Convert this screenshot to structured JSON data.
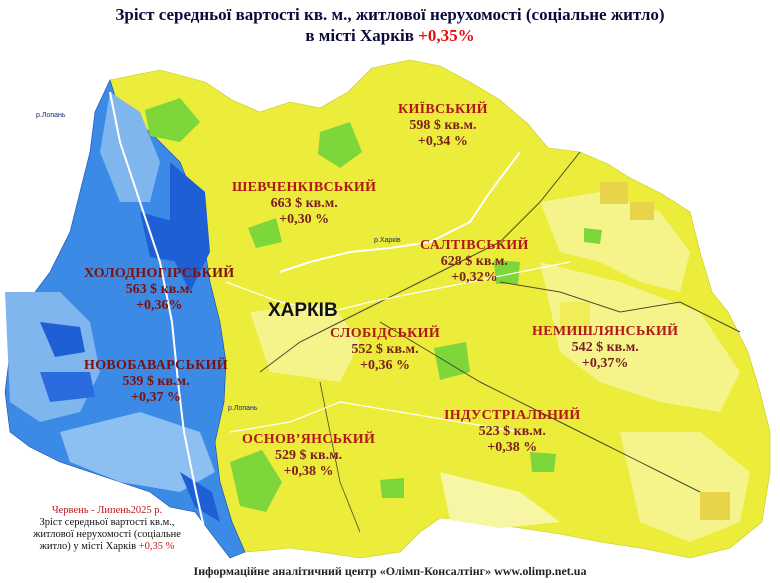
{
  "title": {
    "line1": "Зріст середньої вартості кв. м., житлової нерухомості (соціальне житло)",
    "line2_prefix": "в місті Харків",
    "line2_value": "+0,35%"
  },
  "city_label": "ХАРКІВ",
  "rivers": {
    "lopan_top": "р.Лопань",
    "lopan_bottom": "р.Лопань",
    "kharkiv": "р.Харків"
  },
  "districts": [
    {
      "id": "kyivskyi",
      "name": "КИЇВСЬКИЙ",
      "price": "598 $ кв.м.",
      "change": "+0,34 %"
    },
    {
      "id": "shevchenkivskyi",
      "name": "ШЕВЧЕНКІВСЬКИЙ",
      "price": "663 $ кв.м.",
      "change": "+0,30 %"
    },
    {
      "id": "saltivskyi",
      "name": "САЛТІВСЬКИЙ",
      "price": "628 $ кв.м.",
      "change": "+0,32%"
    },
    {
      "id": "kholodnohirskyi",
      "name": "ХОЛОДНОГІРСЬКИЙ",
      "price": "563 $ кв.м.",
      "change": "+0,36%"
    },
    {
      "id": "slobidskyi",
      "name": "СЛОБІДСЬКИЙ",
      "price": "552 $ кв.м.",
      "change": "+0,36 %"
    },
    {
      "id": "nemyshlianskyi",
      "name": "НЕМИШЛЯНСЬКИЙ",
      "price": "542 $ кв.м.",
      "change": "+0,37%"
    },
    {
      "id": "novobavarskyi",
      "name": "НОВОБАВАРСЬКИЙ",
      "price": "539 $ кв.м.",
      "change": "+0,37 %"
    },
    {
      "id": "industrialnyi",
      "name": "ІНДУСТРІАЛЬНИЙ",
      "price": "523 $ кв.м.",
      "change": "+0,38 %"
    },
    {
      "id": "osnovianskyi",
      "name": "ОСНОВ’ЯНСЬКИЙ",
      "price": "529 $ кв.м.",
      "change": "+0,38 %"
    }
  ],
  "note": {
    "period": "Червень - Липень2025 р.",
    "text": "Зріст середньої вартості кв.м., житлової нерухомості (соціальне житло) у місті Харків",
    "value": "+0,35 %"
  },
  "footer": "Інформаційне аналітичний центр «Олімп-Консалтінг» www.olimp.net.ua",
  "colors": {
    "yellow": "#ecec3a",
    "light_yellow": "#f2f27a",
    "green": "#7dd63a",
    "blue_dark": "#1e5fd6",
    "blue_mid": "#3a8ae6",
    "blue_light": "#7fb6ee",
    "accent_red": "#e01010"
  }
}
